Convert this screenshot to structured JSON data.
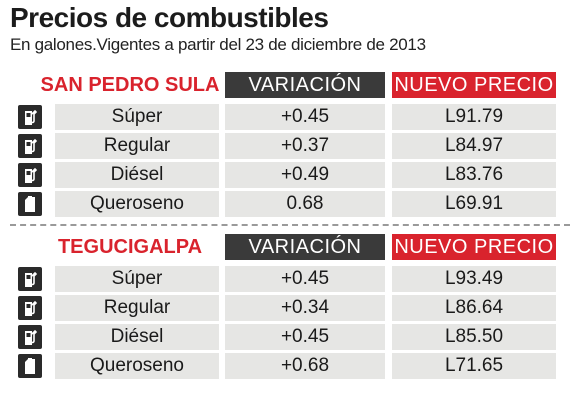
{
  "header": {
    "title": "Precios de combustibles",
    "subtitle": "En galones.Vigentes a partir del 23 de diciembre de 2013"
  },
  "columns": {
    "variation": "VARIACIÓN",
    "new_price": "NUEVO PRECIO"
  },
  "sections": [
    {
      "city": "SAN PEDRO SULA",
      "rows": [
        {
          "fuel": "Súper",
          "variation": "+0.45",
          "price": "L91.79",
          "icon": "fuel-pump-icon"
        },
        {
          "fuel": "Regular",
          "variation": "+0.37",
          "price": "L84.97",
          "icon": "fuel-pump-icon"
        },
        {
          "fuel": "Diésel",
          "variation": "+0.49",
          "price": "L83.76",
          "icon": "fuel-pump-icon"
        },
        {
          "fuel": "Queroseno",
          "variation": "0.68",
          "price": "L69.91",
          "icon": "fuel-can-icon"
        }
      ]
    },
    {
      "city": "TEGUCIGALPA",
      "rows": [
        {
          "fuel": "Súper",
          "variation": "+0.45",
          "price": "L93.49",
          "icon": "fuel-pump-icon"
        },
        {
          "fuel": "Regular",
          "variation": "+0.34",
          "price": "L86.64",
          "icon": "fuel-pump-icon"
        },
        {
          "fuel": "Diésel",
          "variation": "+0.45",
          "price": "L85.50",
          "icon": "fuel-pump-icon"
        },
        {
          "fuel": "Queroseno",
          "variation": "+0.68",
          "price": "L71.65",
          "icon": "fuel-can-icon"
        }
      ]
    }
  ],
  "colors": {
    "accent_red": "#d9232d",
    "header_dark": "#3a3a3a",
    "cell_bg": "#e6e6e4"
  }
}
